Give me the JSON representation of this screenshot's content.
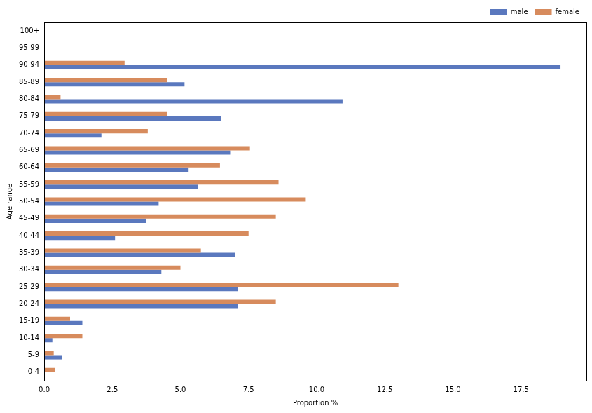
{
  "chart_data": {
    "type": "bar",
    "orientation": "horizontal",
    "x_label": "Proportion %",
    "y_label": "Age range",
    "categories": [
      "0-4",
      "5-9",
      "10-14",
      "15-19",
      "20-24",
      "25-29",
      "30-34",
      "35-39",
      "40-44",
      "45-49",
      "50-54",
      "55-59",
      "60-64",
      "65-69",
      "70-74",
      "75-79",
      "80-84",
      "85-89",
      "90-94",
      "95-99",
      "100+"
    ],
    "series": [
      {
        "name": "male",
        "color": "#5a78be",
        "values": [
          0,
          0.65,
          0.3,
          1.4,
          7.1,
          7.1,
          4.3,
          7.0,
          2.6,
          3.75,
          4.2,
          5.65,
          5.3,
          6.85,
          2.1,
          6.5,
          10.95,
          5.15,
          18.95,
          0,
          0
        ]
      },
      {
        "name": "female",
        "color": "#d78b5d",
        "values": [
          0.4,
          0.35,
          1.4,
          0.95,
          8.5,
          13.0,
          5.0,
          5.75,
          7.5,
          8.5,
          9.6,
          8.6,
          6.45,
          7.55,
          3.8,
          4.5,
          0.6,
          4.5,
          2.95,
          0,
          0
        ]
      }
    ],
    "xlim": [
      0,
      19.9
    ],
    "xticks": [
      {
        "value": 0,
        "label": "0.0"
      },
      2.5,
      {
        "value": 5,
        "label": "5.0"
      },
      7.5,
      {
        "value": 10,
        "label": "10.0"
      },
      12.5,
      {
        "value": 15,
        "label": "15.0"
      },
      17.5
    ],
    "grid": false,
    "legend": "upper right"
  }
}
